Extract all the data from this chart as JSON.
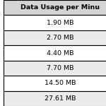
{
  "header": "Data Usage per Minu",
  "rows": [
    "1.90 MB",
    "2.70 MB",
    "4.40 MB",
    "7.70 MB",
    "14.50 MB",
    "27.61 MB"
  ],
  "header_bg": "#d4d4d4",
  "row_bg_odd": "#ffffff",
  "row_bg_even": "#ebebeb",
  "border_color": "#000000",
  "header_fontsize": 6.8,
  "row_fontsize": 6.8,
  "header_font_weight": "bold",
  "fig_width": 1.5,
  "fig_height": 1.5,
  "dpi": 100
}
